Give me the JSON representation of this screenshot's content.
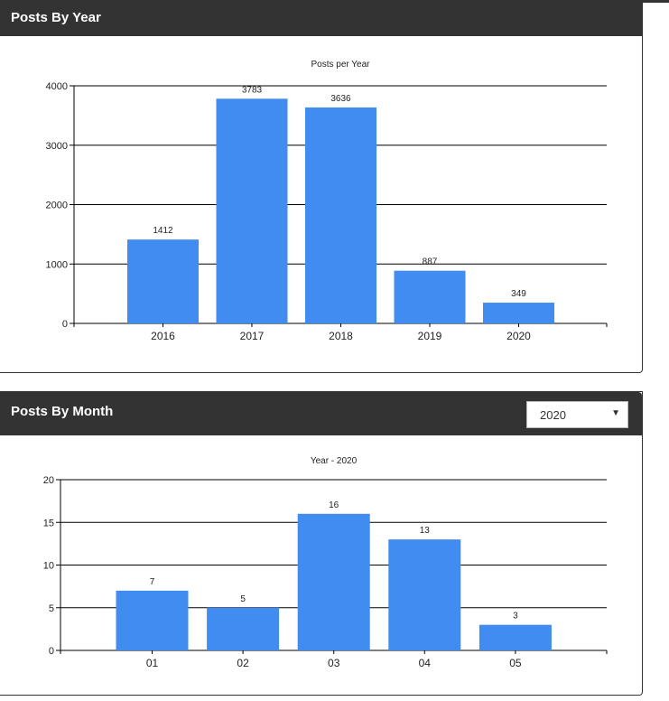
{
  "panels": {
    "year": {
      "title": "Posts By Year"
    },
    "month": {
      "title": "Posts By Month",
      "selected_year": "2020"
    }
  },
  "colors": {
    "header": "#333333",
    "bar": "#418cf0",
    "grid": "#000000"
  },
  "icons": {
    "dropdown": "chevron-down-icon"
  },
  "chart_data": [
    {
      "type": "bar",
      "title": "Posts per Year",
      "xlabel": "",
      "ylabel": "",
      "categories": [
        "2016",
        "2017",
        "2018",
        "2019",
        "2020"
      ],
      "values": [
        1412,
        3783,
        3636,
        887,
        349
      ],
      "ylim": [
        0,
        4000
      ],
      "yticks": [
        0,
        1000,
        2000,
        3000,
        4000
      ],
      "grid": true,
      "data_labels": true
    },
    {
      "type": "bar",
      "title": "Year - 2020",
      "xlabel": "",
      "ylabel": "",
      "categories": [
        "01",
        "02",
        "03",
        "04",
        "05"
      ],
      "values": [
        7,
        5,
        16,
        13,
        3
      ],
      "ylim": [
        0,
        20
      ],
      "yticks": [
        0,
        5,
        10,
        15,
        20
      ],
      "grid": true,
      "data_labels": true
    }
  ]
}
